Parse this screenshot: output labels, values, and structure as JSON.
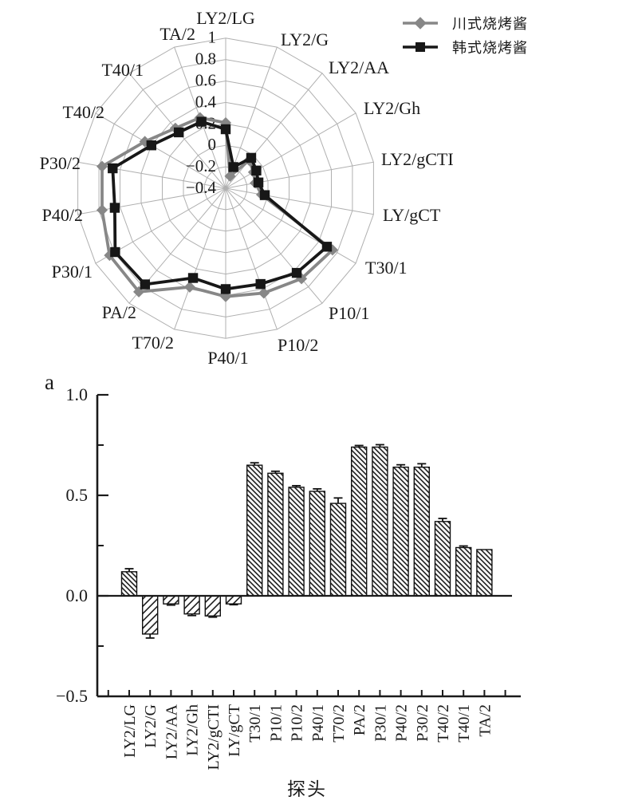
{
  "legend": {
    "items": [
      {
        "label": "川式烧烤酱",
        "marker": "diamond",
        "color": "#878787"
      },
      {
        "label": "韩式烧烤酱",
        "marker": "square",
        "color": "#171717"
      }
    ]
  },
  "chart_data": [
    {
      "type": "radar",
      "direction": "clockwise-from-top",
      "grid": "polygon-web",
      "rlim": [
        -0.4,
        1.0
      ],
      "radial_ticks": [
        1,
        0.8,
        0.6,
        0.4,
        0.2,
        0,
        -0.2,
        -0.4
      ],
      "categories": [
        "LY2/LG",
        "LY2/G",
        "LY2/AA",
        "LY2/Gh",
        "LY2/gCTI",
        "LY/gCT",
        "T30/1",
        "P10/1",
        "P10/2",
        "P40/1",
        "T70/2",
        "PA/2",
        "P30/1",
        "P40/2",
        "P30/2",
        "T40/2",
        "T40/1",
        "TA/2"
      ],
      "series": [
        {
          "name": "川式烧烤酱",
          "color": "#878787",
          "marker": "diamond",
          "values": [
            0.21,
            -0.28,
            -0.06,
            -0.1,
            -0.12,
            -0.06,
            0.75,
            0.7,
            0.64,
            0.61,
            0.58,
            0.86,
            0.85,
            0.77,
            0.77,
            0.47,
            0.33,
            0.3
          ]
        },
        {
          "name": "韩式烧烤酱",
          "color": "#171717",
          "marker": "square",
          "values": [
            0.15,
            -0.19,
            -0.03,
            -0.07,
            -0.09,
            -0.03,
            0.69,
            0.63,
            0.55,
            0.54,
            0.49,
            0.77,
            0.79,
            0.65,
            0.67,
            0.4,
            0.28,
            0.26
          ]
        }
      ]
    },
    {
      "type": "bar",
      "panel_label": "a",
      "xlabel": "探头",
      "ylim": [
        -0.5,
        1.0
      ],
      "yticks_major": [
        1.0,
        0.5,
        0.0,
        -0.5
      ],
      "ytick_labels": [
        "1.0",
        "0.5",
        "0.0",
        "-0.5"
      ],
      "yticks_minor": [
        0.75,
        0.25,
        -0.25
      ],
      "hatch_positive": "diagonal-down-dense",
      "hatch_negative": "diagonal-up-sparse",
      "categories": [
        "LY2/LG",
        "LY2/G",
        "LY2/AA",
        "LY2/Gh",
        "LY2/gCTI",
        "LY/gCT",
        "T30/1",
        "P10/1",
        "P10/2",
        "P40/1",
        "T70/2",
        "PA/2",
        "P30/1",
        "P40/2",
        "P30/2",
        "T40/2",
        "T40/1",
        "TA/2"
      ],
      "values": [
        0.12,
        -0.19,
        -0.04,
        -0.09,
        -0.1,
        -0.04,
        0.65,
        0.61,
        0.54,
        0.52,
        0.46,
        0.74,
        0.74,
        0.64,
        0.64,
        0.37,
        0.24,
        0.23
      ],
      "errors": [
        0.015,
        0.02,
        0.006,
        0.008,
        0.006,
        0.004,
        0.012,
        0.01,
        0.008,
        0.012,
        0.027,
        0.008,
        0.012,
        0.012,
        0.017,
        0.015,
        0.008,
        0
      ]
    }
  ]
}
